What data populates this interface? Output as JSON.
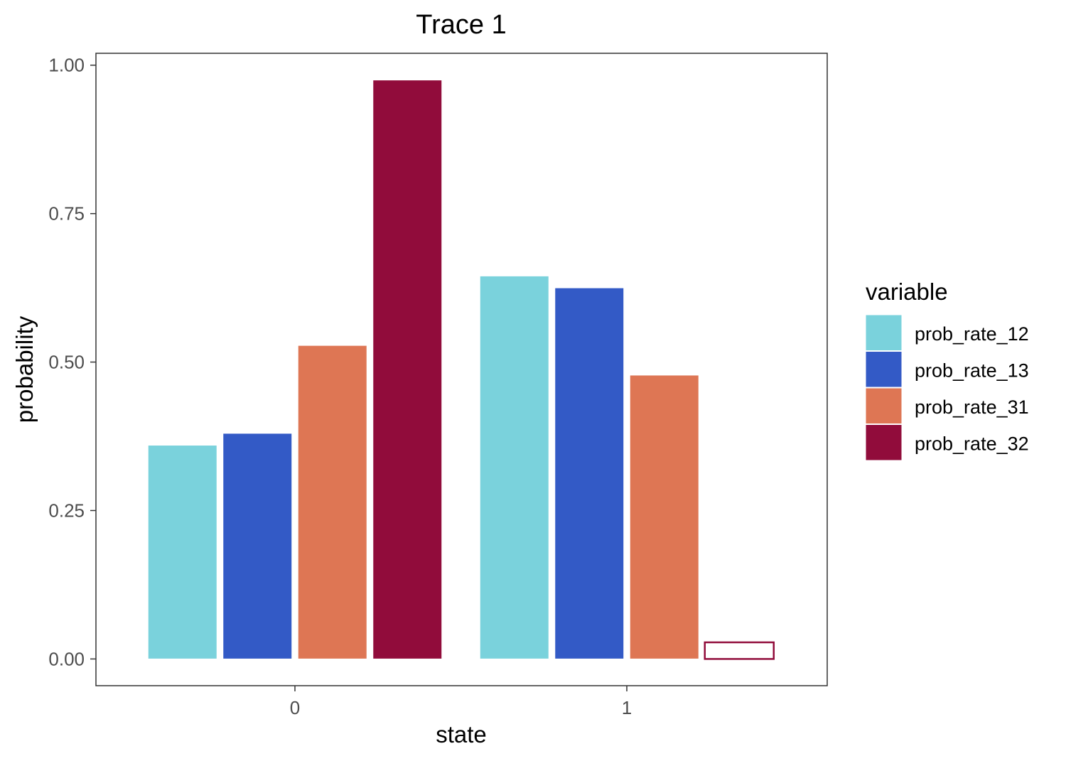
{
  "chart_data": {
    "type": "bar",
    "title": "Trace 1",
    "xlabel": "state",
    "ylabel": "probability",
    "categories": [
      "0",
      "1"
    ],
    "ylim": [
      -0.045,
      1.02
    ],
    "yticks": [
      "0.00",
      "0.25",
      "0.50",
      "0.75",
      "1.00"
    ],
    "grid": false,
    "legend": {
      "title": "variable",
      "position": "right"
    },
    "series": [
      {
        "name": "prob_rate_12",
        "color": "#7AD2DC",
        "values": [
          0.36,
          0.645
        ]
      },
      {
        "name": "prob_rate_13",
        "color": "#335AC6",
        "values": [
          0.38,
          0.625
        ]
      },
      {
        "name": "prob_rate_31",
        "color": "#DE7654",
        "values": [
          0.528,
          0.478
        ]
      },
      {
        "name": "prob_rate_32",
        "color": "#910C3B",
        "values": [
          0.975,
          0.028
        ]
      }
    ]
  }
}
